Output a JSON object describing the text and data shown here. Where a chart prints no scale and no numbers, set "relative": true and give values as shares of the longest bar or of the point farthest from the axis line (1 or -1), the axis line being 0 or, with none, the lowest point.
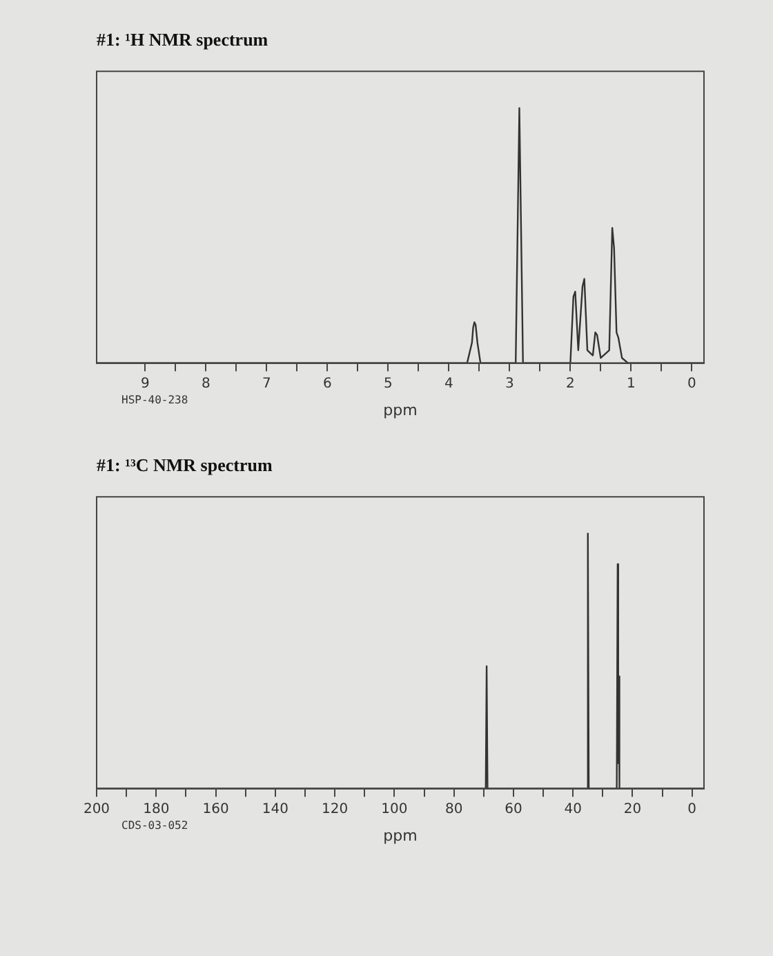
{
  "chart_data": [
    {
      "type": "line",
      "title": "#1: ¹H NMR spectrum",
      "xlabel": "ppm",
      "relative": true,
      "color": "#333333",
      "marker": "none",
      "grid": false,
      "legend": false,
      "x": [
        9.8,
        3.7,
        3.62,
        3.6,
        3.58,
        3.56,
        3.53,
        3.48,
        2.9,
        2.84,
        2.78,
        2.0,
        1.95,
        1.92,
        1.87,
        1.8,
        1.77,
        1.72,
        1.63,
        1.59,
        1.56,
        1.5,
        1.36,
        1.31,
        1.28,
        1.24,
        1.21,
        1.15,
        1.05,
        -0.2
      ],
      "values": [
        0,
        0,
        0.08,
        0.14,
        0.16,
        0.15,
        0.08,
        0,
        0,
        1,
        0,
        0,
        0.26,
        0.28,
        0.05,
        0.3,
        0.33,
        0.05,
        0.03,
        0.12,
        0.11,
        0.02,
        0.05,
        0.53,
        0.45,
        0.12,
        0.1,
        0.02,
        0,
        0
      ],
      "xlim": [
        9.8,
        -0.2
      ],
      "xticks": [
        9,
        {
          "value": 8.5,
          "label": null
        },
        8,
        {
          "value": 7.5,
          "label": null
        },
        7,
        {
          "value": 6.5,
          "label": null
        },
        6,
        {
          "value": 5.5,
          "label": null
        },
        5,
        {
          "value": 4.5,
          "label": null
        },
        4,
        {
          "value": 3.5,
          "label": null
        },
        3,
        {
          "value": 2.5,
          "label": null
        },
        2,
        {
          "value": 1.5,
          "label": null
        },
        1,
        {
          "value": 0.5,
          "label": null
        },
        0
      ],
      "annotations": [
        "HSP-40-238"
      ]
    },
    {
      "type": "line",
      "title": "#1: ¹³C NMR spectrum",
      "xlabel": "ppm",
      "relative": true,
      "color": "#333333",
      "marker": "none",
      "grid": false,
      "legend": false,
      "x": [
        200,
        69.3,
        69,
        68.7,
        35.3,
        35,
        34.7,
        25.3,
        25,
        24.8,
        24.6,
        24.4,
        -4
      ],
      "values": [
        0,
        0,
        0.48,
        0,
        0,
        1,
        0,
        0,
        0.88,
        0.1,
        0.44,
        0,
        0
      ],
      "xlim": [
        200,
        -4
      ],
      "xticks": [
        200,
        {
          "value": 190,
          "label": null
        },
        180,
        {
          "value": 170,
          "label": null
        },
        160,
        {
          "value": 150,
          "label": null
        },
        140,
        {
          "value": 130,
          "label": null
        },
        120,
        {
          "value": 110,
          "label": null
        },
        100,
        {
          "value": 90,
          "label": null
        },
        80,
        {
          "value": 70,
          "label": null
        },
        60,
        {
          "value": 50,
          "label": null
        },
        40,
        {
          "value": 30,
          "label": null
        },
        20,
        {
          "value": 10,
          "label": null
        },
        0
      ],
      "annotations": [
        "CDS-03-052"
      ]
    }
  ]
}
